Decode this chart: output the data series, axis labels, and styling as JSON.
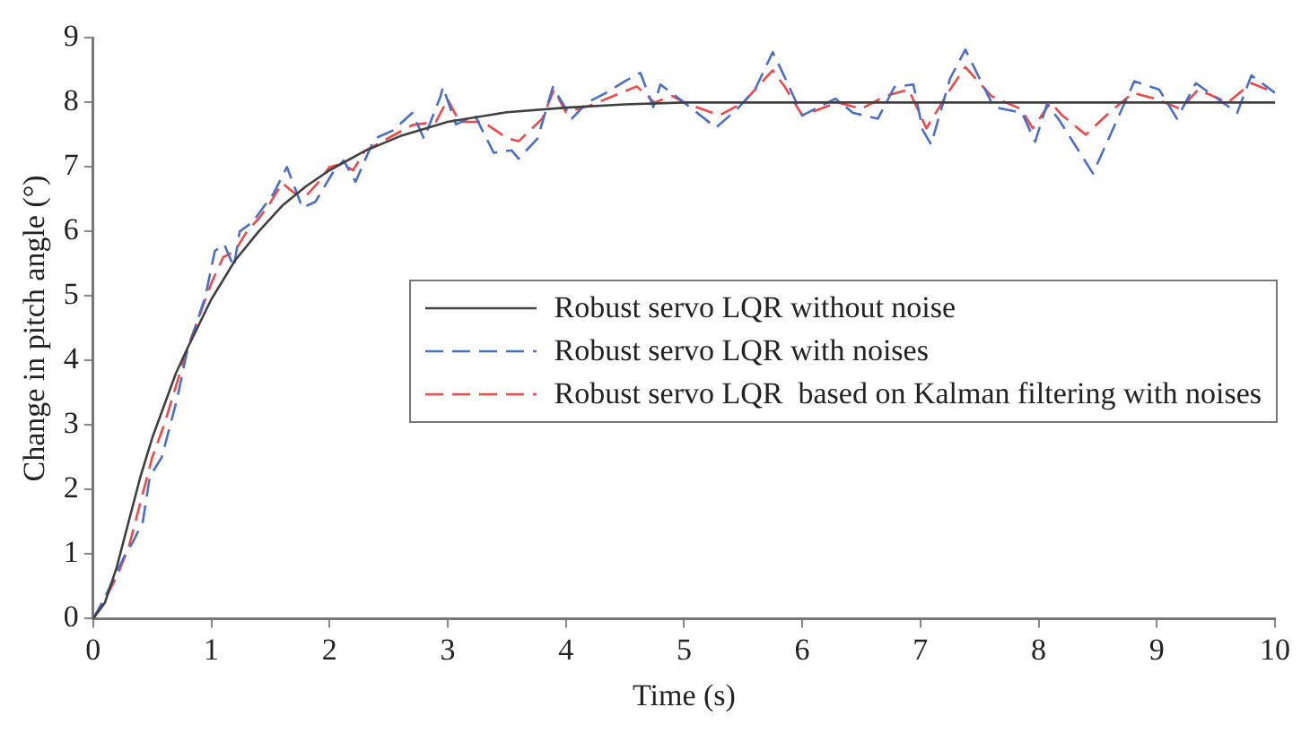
{
  "chart_data": {
    "type": "line",
    "xlabel": "Time (s)",
    "ylabel": "Change in pitch angle (°)",
    "xlim": [
      0,
      10
    ],
    "xticks": [
      0,
      1,
      2,
      3,
      4,
      5,
      6,
      7,
      8,
      9,
      10
    ],
    "ylim": [
      0,
      9
    ],
    "yticks": [
      0,
      1,
      2,
      3,
      4,
      5,
      6,
      7,
      8,
      9
    ],
    "grid": false,
    "legend": "right",
    "marker": "none",
    "series": [
      {
        "name": "Robust servo LQR without noise",
        "color": "#404040",
        "line_style": "solid",
        "x": [
          0,
          0.1,
          0.2,
          0.3,
          0.4,
          0.5,
          0.6,
          0.7,
          0.8,
          1.0,
          1.2,
          1.4,
          1.6,
          1.8,
          2.0,
          2.3,
          2.6,
          3.0,
          3.5,
          4.0,
          4.5,
          5,
          6,
          7,
          8,
          9,
          10
        ],
        "values": [
          0,
          0.25,
          0.8,
          1.5,
          2.2,
          2.8,
          3.3,
          3.8,
          4.2,
          4.95,
          5.55,
          6.0,
          6.4,
          6.7,
          6.95,
          7.25,
          7.48,
          7.7,
          7.85,
          7.92,
          7.97,
          8.0,
          8.0,
          8.0,
          8.0,
          8.0,
          8.0
        ]
      },
      {
        "name": "Robust servo LQR with noises",
        "color": "#4a6fc8",
        "line_style": "dashed",
        "x": [
          0,
          0.1,
          0.26,
          0.34,
          0.42,
          0.48,
          0.58,
          0.71,
          0.79,
          0.95,
          1.03,
          1.11,
          1.19,
          1.24,
          1.35,
          1.53,
          1.64,
          1.77,
          1.88,
          2.04,
          2.12,
          2.22,
          2.38,
          2.54,
          2.7,
          2.8,
          2.94,
          2.96,
          3.07,
          3.23,
          3.39,
          3.54,
          3.6,
          3.76,
          3.89,
          4.05,
          4.18,
          4.34,
          4.5,
          4.63,
          4.74,
          4.8,
          5.0,
          5.27,
          5.45,
          5.6,
          5.75,
          5.85,
          6.0,
          6.28,
          6.43,
          6.64,
          6.78,
          6.94,
          7.02,
          7.09,
          7.25,
          7.38,
          7.62,
          7.86,
          7.97,
          8.07,
          8.17,
          8.46,
          8.81,
          9.02,
          9.17,
          9.33,
          9.68,
          9.8,
          10
        ],
        "values": [
          0,
          0.33,
          0.95,
          1.2,
          1.5,
          2.2,
          2.5,
          3.4,
          4.1,
          5.0,
          5.7,
          5.8,
          5.45,
          6.0,
          6.15,
          6.6,
          7.0,
          6.37,
          6.46,
          6.95,
          7.1,
          6.77,
          7.44,
          7.57,
          7.84,
          7.44,
          8.1,
          8.24,
          7.66,
          7.8,
          7.22,
          7.26,
          7.13,
          7.44,
          8.24,
          7.75,
          8.0,
          8.15,
          8.33,
          8.46,
          7.93,
          8.28,
          8.0,
          7.61,
          7.9,
          8.2,
          8.78,
          8.4,
          7.8,
          8.06,
          7.84,
          7.75,
          8.24,
          8.28,
          7.57,
          7.35,
          8.37,
          8.82,
          7.93,
          7.84,
          7.39,
          7.97,
          7.74,
          6.9,
          8.33,
          8.2,
          7.75,
          8.3,
          7.84,
          8.42,
          8.15
        ]
      },
      {
        "name": "Robust servo LQR  based on Kalman filtering with noises",
        "color": "#f04848",
        "line_style": "dashed",
        "x": [
          0,
          0.1,
          0.2,
          0.3,
          0.4,
          0.5,
          0.6,
          0.7,
          0.8,
          0.9,
          1.0,
          1.1,
          1.2,
          1.3,
          1.4,
          1.5,
          1.6,
          1.7,
          1.8,
          1.9,
          2.0,
          2.1,
          2.2,
          2.3,
          2.5,
          2.7,
          2.9,
          3.0,
          3.1,
          3.3,
          3.5,
          3.6,
          3.8,
          3.9,
          4.0,
          4.2,
          4.4,
          4.6,
          4.75,
          4.9,
          5.0,
          5.3,
          5.5,
          5.75,
          5.85,
          6.0,
          6.3,
          6.5,
          6.7,
          6.9,
          7.05,
          7.25,
          7.38,
          7.6,
          7.85,
          7.95,
          8.1,
          8.2,
          8.4,
          8.6,
          8.8,
          9.0,
          9.2,
          9.35,
          9.6,
          9.8,
          10
        ],
        "values": [
          0,
          0.3,
          0.65,
          1.1,
          1.8,
          2.5,
          3.0,
          3.6,
          4.2,
          4.7,
          5.2,
          5.6,
          5.7,
          6.0,
          6.2,
          6.45,
          6.75,
          6.6,
          6.55,
          6.75,
          7.0,
          7.05,
          6.95,
          7.25,
          7.45,
          7.65,
          7.7,
          8.05,
          7.7,
          7.7,
          7.45,
          7.4,
          7.75,
          8.2,
          7.85,
          7.95,
          8.1,
          8.25,
          8.0,
          8.1,
          8.0,
          7.8,
          8.0,
          8.5,
          8.25,
          7.8,
          8.0,
          7.9,
          8.1,
          8.2,
          7.6,
          8.2,
          8.55,
          8.1,
          7.9,
          7.6,
          8.0,
          7.8,
          7.5,
          7.85,
          8.15,
          8.05,
          7.9,
          8.2,
          8.0,
          8.3,
          8.15
        ]
      }
    ]
  }
}
